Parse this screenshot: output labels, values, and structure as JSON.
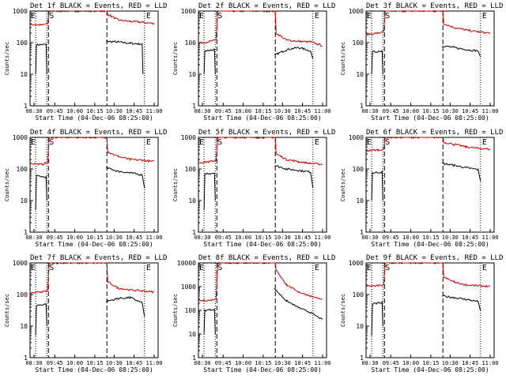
{
  "chart_data": [
    {
      "type": "line",
      "title": "Det 1f BLACK = Events, RED = LLD",
      "xlabel": "Start Time (04-Dec-06 08:25:00)",
      "ylabel": "Counts/sec",
      "y_scale": "log",
      "ylim": [
        1,
        1000
      ],
      "y_ticks": [
        "1",
        "10",
        "100",
        "1000"
      ],
      "x_ticks": [
        "08:30",
        "09:45",
        "10:00",
        "10:15",
        "10:30",
        "10:45",
        "11:00"
      ],
      "markers": [
        "E",
        "S",
        "E"
      ],
      "series": [
        {
          "name": "BLACK = Events",
          "color": "#000000",
          "points": [
            [
              "08:32",
              10
            ],
            [
              "08:33",
              85
            ],
            [
              "08:45",
              88
            ],
            [
              "08:46",
              10
            ],
            [
              "09:59",
              null
            ],
            [
              "10:00",
              110
            ],
            [
              "10:15",
              105
            ],
            [
              "10:30",
              95
            ],
            [
              "10:45",
              90
            ],
            [
              "10:46",
              10
            ]
          ]
        },
        {
          "name": "RED = LLD",
          "color": "#cc0000",
          "points": [
            [
              "08:25",
              380
            ],
            [
              "08:40",
              360
            ],
            [
              "08:47",
              400
            ],
            [
              "08:49",
              1000
            ],
            [
              "10:01",
              1000
            ],
            [
              "10:02",
              800
            ],
            [
              "10:15",
              520
            ],
            [
              "10:30",
              470
            ],
            [
              "10:45",
              440
            ],
            [
              "11:00",
              400
            ]
          ]
        }
      ]
    },
    {
      "type": "line",
      "title": "Det 2f BLACK = Events, RED = LLD",
      "xlabel": "Start Time (04-Dec-06 08:25:00)",
      "ylabel": "Counts/sec",
      "y_scale": "log",
      "ylim": [
        1,
        1000
      ],
      "y_ticks": [
        "1",
        "10",
        "100",
        "1000"
      ],
      "x_ticks": [
        "08:30",
        "09:45",
        "10:00",
        "10:15",
        "10:30",
        "10:45",
        "11:00"
      ],
      "markers": [
        "E",
        "S",
        "E"
      ],
      "series": [
        {
          "name": "BLACK = Events",
          "color": "#000000",
          "points": [
            [
              "08:32",
              10
            ],
            [
              "08:33",
              55
            ],
            [
              "08:45",
              60
            ],
            [
              "08:46",
              10
            ],
            [
              "09:59",
              null
            ],
            [
              "10:00",
              40
            ],
            [
              "10:15",
              60
            ],
            [
              "10:30",
              70
            ],
            [
              "10:45",
              55
            ],
            [
              "10:48",
              30
            ]
          ]
        },
        {
          "name": "RED = LLD",
          "color": "#cc0000",
          "points": [
            [
              "08:25",
              95
            ],
            [
              "08:40",
              110
            ],
            [
              "08:47",
              120
            ],
            [
              "08:49",
              1000
            ],
            [
              "10:01",
              1000
            ],
            [
              "10:02",
              200
            ],
            [
              "10:15",
              120
            ],
            [
              "10:30",
              110
            ],
            [
              "10:45",
              105
            ],
            [
              "11:00",
              80
            ]
          ]
        }
      ]
    },
    {
      "type": "line",
      "title": "Det 3f BLACK = Events, RED = LLD",
      "xlabel": "Start Time (04-Dec-06 08:25:00)",
      "ylabel": "Counts/sec",
      "y_scale": "log",
      "ylim": [
        1,
        1000
      ],
      "y_ticks": [
        "1",
        "10",
        "100",
        "1000"
      ],
      "x_ticks": [
        "08:30",
        "09:45",
        "10:00",
        "10:15",
        "10:30",
        "10:45",
        "11:00"
      ],
      "markers": [
        "E",
        "S",
        "E"
      ],
      "series": [
        {
          "name": "BLACK = Events",
          "color": "#000000",
          "points": [
            [
              "08:32",
              10
            ],
            [
              "08:33",
              50
            ],
            [
              "08:45",
              55
            ],
            [
              "08:46",
              10
            ],
            [
              "09:59",
              null
            ],
            [
              "10:00",
              80
            ],
            [
              "10:15",
              70
            ],
            [
              "10:30",
              60
            ],
            [
              "10:45",
              55
            ],
            [
              "10:48",
              35
            ]
          ]
        },
        {
          "name": "RED = LLD",
          "color": "#cc0000",
          "points": [
            [
              "08:25",
              180
            ],
            [
              "08:40",
              200
            ],
            [
              "08:47",
              220
            ],
            [
              "08:49",
              1000
            ],
            [
              "10:01",
              1000
            ],
            [
              "10:02",
              400
            ],
            [
              "10:15",
              300
            ],
            [
              "10:30",
              250
            ],
            [
              "10:45",
              220
            ],
            [
              "11:00",
              200
            ]
          ]
        }
      ]
    },
    {
      "type": "line",
      "title": "Det 4f BLACK = Events, RED = LLD",
      "xlabel": "Start Time (04-Dec-06 08:25:00)",
      "ylabel": "Counts/sec",
      "y_scale": "log",
      "ylim": [
        1,
        1000
      ],
      "y_ticks": [
        "1",
        "10",
        "100",
        "1000"
      ],
      "x_ticks": [
        "08:30",
        "09:45",
        "10:00",
        "10:15",
        "10:30",
        "10:45",
        "11:00"
      ],
      "markers": [
        "E",
        "S",
        "E"
      ],
      "series": [
        {
          "name": "BLACK = Events",
          "color": "#000000",
          "points": [
            [
              "08:32",
              5
            ],
            [
              "08:33",
              60
            ],
            [
              "08:45",
              55
            ],
            [
              "08:46",
              10
            ],
            [
              "09:59",
              null
            ],
            [
              "10:00",
              110
            ],
            [
              "10:15",
              85
            ],
            [
              "10:30",
              75
            ],
            [
              "10:45",
              65
            ],
            [
              "10:48",
              25
            ]
          ]
        },
        {
          "name": "RED = LLD",
          "color": "#cc0000",
          "points": [
            [
              "08:25",
              150
            ],
            [
              "08:40",
              140
            ],
            [
              "08:47",
              160
            ],
            [
              "08:49",
              1000
            ],
            [
              "10:01",
              1000
            ],
            [
              "10:02",
              350
            ],
            [
              "10:15",
              250
            ],
            [
              "10:30",
              200
            ],
            [
              "10:45",
              190
            ],
            [
              "11:00",
              170
            ]
          ]
        }
      ]
    },
    {
      "type": "line",
      "title": "Det 5f BLACK = Events, RED = LLD",
      "xlabel": "Start Time (04-Dec-06 08:25:00)",
      "ylabel": "Counts/sec",
      "y_scale": "log",
      "ylim": [
        1,
        1000
      ],
      "y_ticks": [
        "1",
        "10",
        "100",
        "1000"
      ],
      "x_ticks": [
        "08:30",
        "09:45",
        "10:00",
        "10:15",
        "10:30",
        "10:45",
        "11:00"
      ],
      "markers": [
        "E",
        "S",
        "E"
      ],
      "series": [
        {
          "name": "BLACK = Events",
          "color": "#000000",
          "points": [
            [
              "08:32",
              5
            ],
            [
              "08:33",
              70
            ],
            [
              "08:45",
              75
            ],
            [
              "08:46",
              10
            ],
            [
              "09:59",
              null
            ],
            [
              "10:00",
              130
            ],
            [
              "10:15",
              100
            ],
            [
              "10:30",
              90
            ],
            [
              "10:45",
              80
            ],
            [
              "10:48",
              25
            ]
          ]
        },
        {
          "name": "RED = LLD",
          "color": "#cc0000",
          "points": [
            [
              "08:25",
              160
            ],
            [
              "08:40",
              170
            ],
            [
              "08:47",
              190
            ],
            [
              "08:49",
              1000
            ],
            [
              "10:01",
              1000
            ],
            [
              "10:02",
              300
            ],
            [
              "10:15",
              200
            ],
            [
              "10:30",
              170
            ],
            [
              "10:45",
              150
            ],
            [
              "11:00",
              140
            ]
          ]
        }
      ]
    },
    {
      "type": "line",
      "title": "Det 6f BLACK = Events, RED = LLD",
      "xlabel": "Start Time (04-Dec-06 08:25:00)",
      "ylabel": "Counts/sec",
      "y_scale": "log",
      "ylim": [
        1,
        1000
      ],
      "y_ticks": [
        "1",
        "10",
        "100",
        "1000"
      ],
      "x_ticks": [
        "08:30",
        "09:45",
        "10:00",
        "10:15",
        "10:30",
        "10:45",
        "11:00"
      ],
      "markers": [
        "E",
        "S",
        "E"
      ],
      "series": [
        {
          "name": "BLACK = Events",
          "color": "#000000",
          "points": [
            [
              "08:32",
              10
            ],
            [
              "08:33",
              75
            ],
            [
              "08:45",
              80
            ],
            [
              "08:46",
              10
            ],
            [
              "09:59",
              null
            ],
            [
              "10:00",
              150
            ],
            [
              "10:15",
              130
            ],
            [
              "10:30",
              110
            ],
            [
              "10:45",
              95
            ],
            [
              "10:48",
              40
            ]
          ]
        },
        {
          "name": "RED = LLD",
          "color": "#cc0000",
          "points": [
            [
              "08:25",
              380
            ],
            [
              "08:40",
              400
            ],
            [
              "08:47",
              420
            ],
            [
              "08:49",
              1000
            ],
            [
              "10:01",
              1000
            ],
            [
              "10:02",
              700
            ],
            [
              "10:15",
              600
            ],
            [
              "10:30",
              500
            ],
            [
              "10:45",
              450
            ],
            [
              "11:00",
              420
            ]
          ]
        }
      ]
    },
    {
      "type": "line",
      "title": "Det 7f BLACK = Events, RED = LLD",
      "xlabel": "Start Time (04-Dec-06 08:25:00)",
      "ylabel": "Counts/sec",
      "y_scale": "log",
      "ylim": [
        1,
        1000
      ],
      "y_ticks": [
        "1",
        "10",
        "100",
        "1000"
      ],
      "x_ticks": [
        "08:30",
        "09:45",
        "10:00",
        "10:15",
        "10:30",
        "10:45",
        "11:00"
      ],
      "markers": [
        "E",
        "S",
        "E"
      ],
      "series": [
        {
          "name": "BLACK = Events",
          "color": "#000000",
          "points": [
            [
              "08:32",
              5
            ],
            [
              "08:33",
              45
            ],
            [
              "08:45",
              50
            ],
            [
              "08:46",
              10
            ],
            [
              "09:59",
              null
            ],
            [
              "10:00",
              60
            ],
            [
              "10:15",
              75
            ],
            [
              "10:30",
              80
            ],
            [
              "10:45",
              55
            ],
            [
              "10:48",
              20
            ]
          ]
        },
        {
          "name": "RED = LLD",
          "color": "#cc0000",
          "points": [
            [
              "08:25",
              110
            ],
            [
              "08:40",
              120
            ],
            [
              "08:47",
              130
            ],
            [
              "08:49",
              1000
            ],
            [
              "10:01",
              1000
            ],
            [
              "10:02",
              250
            ],
            [
              "10:15",
              160
            ],
            [
              "10:30",
              140
            ],
            [
              "10:45",
              130
            ],
            [
              "11:00",
              120
            ]
          ]
        }
      ]
    },
    {
      "type": "line",
      "title": "Det 8f BLACK = Events, RED = LLD",
      "xlabel": "Start Time (04-Dec-06 08:25:00)",
      "ylabel": "Counts/sec",
      "y_scale": "log",
      "ylim": [
        1,
        10000
      ],
      "y_ticks": [
        "1",
        "10",
        "100",
        "1000",
        "10000"
      ],
      "x_ticks": [
        "08:30",
        "09:45",
        "10:00",
        "10:15",
        "10:30",
        "10:45",
        "11:00"
      ],
      "markers": [
        "E",
        "S",
        "E"
      ],
      "series": [
        {
          "name": "BLACK = Events",
          "color": "#000000",
          "points": [
            [
              "08:32",
              10
            ],
            [
              "08:33",
              100
            ],
            [
              "08:45",
              110
            ],
            [
              "08:46",
              10
            ],
            [
              "09:59",
              null
            ],
            [
              "10:00",
              800
            ],
            [
              "10:15",
              250
            ],
            [
              "10:30",
              130
            ],
            [
              "10:45",
              80
            ],
            [
              "11:00",
              40
            ]
          ]
        },
        {
          "name": "RED = LLD",
          "color": "#cc0000",
          "points": [
            [
              "08:25",
              250
            ],
            [
              "08:40",
              270
            ],
            [
              "08:47",
              300
            ],
            [
              "08:49",
              10000
            ],
            [
              "10:01",
              10000
            ],
            [
              "10:02",
              5000
            ],
            [
              "10:15",
              1200
            ],
            [
              "10:30",
              600
            ],
            [
              "10:45",
              400
            ],
            [
              "11:00",
              280
            ]
          ]
        }
      ]
    },
    {
      "type": "line",
      "title": "Det 9f BLACK = Events, RED = LLD",
      "xlabel": "Start Time (04-Dec-06 08:25:00)",
      "ylabel": "Counts/sec",
      "y_scale": "log",
      "ylim": [
        1,
        1000
      ],
      "y_ticks": [
        "1",
        "10",
        "100",
        "1000"
      ],
      "x_ticks": [
        "08:30",
        "09:45",
        "10:00",
        "10:15",
        "10:30",
        "10:45",
        "11:00"
      ],
      "markers": [
        "E",
        "S",
        "E"
      ],
      "series": [
        {
          "name": "BLACK = Events",
          "color": "#000000",
          "points": [
            [
              "08:32",
              5
            ],
            [
              "08:33",
              50
            ],
            [
              "08:45",
              55
            ],
            [
              "08:46",
              10
            ],
            [
              "09:59",
              null
            ],
            [
              "10:00",
              90
            ],
            [
              "10:15",
              80
            ],
            [
              "10:30",
              70
            ],
            [
              "10:45",
              60
            ],
            [
              "10:48",
              30
            ]
          ]
        },
        {
          "name": "RED = LLD",
          "color": "#cc0000",
          "points": [
            [
              "08:25",
              180
            ],
            [
              "08:40",
              190
            ],
            [
              "08:47",
              200
            ],
            [
              "08:49",
              1000
            ],
            [
              "10:01",
              1000
            ],
            [
              "10:02",
              350
            ],
            [
              "10:15",
              250
            ],
            [
              "10:30",
              200
            ],
            [
              "10:45",
              190
            ],
            [
              "11:00",
              180
            ]
          ]
        }
      ]
    }
  ]
}
